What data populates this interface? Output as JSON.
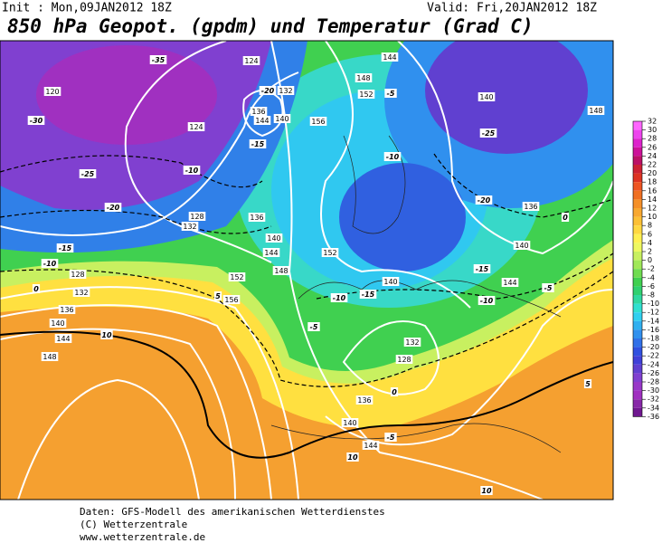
{
  "header": {
    "init": "Init : Mon,09JAN2012 18Z",
    "valid": "Valid: Fri,20JAN2012 18Z",
    "title": "850 hPa Geopot. (gpdm) und Temperatur (Grad C)"
  },
  "colorbar": {
    "ticks": [
      "32",
      "30",
      "28",
      "26",
      "24",
      "22",
      "20",
      "18",
      "16",
      "14",
      "12",
      "10",
      "8",
      "6",
      "4",
      "2",
      "0",
      "-2",
      "-4",
      "-6",
      "-8",
      "-10",
      "-12",
      "-14",
      "-16",
      "-18",
      "-20",
      "-22",
      "-24",
      "-26",
      "-28",
      "-30",
      "-32",
      "-34",
      "-36"
    ],
    "colors": [
      "#ff66ff",
      "#ee44ee",
      "#dd22cc",
      "#cc1199",
      "#bb1166",
      "#cc2233",
      "#dd3322",
      "#ee5522",
      "#f07022",
      "#f59028",
      "#f8a830",
      "#fcc035",
      "#ffd840",
      "#fff050",
      "#eef860",
      "#c8f060",
      "#a0e858",
      "#70dc50",
      "#40d050",
      "#30d070",
      "#30d8a0",
      "#30e0d0",
      "#30d0f0",
      "#30b0f0",
      "#3090ee",
      "#3070e8",
      "#3050e0",
      "#4040d8",
      "#6040d0",
      "#8040d0",
      "#9838c8",
      "#a030c0",
      "#8828a8",
      "#701890"
    ]
  },
  "map": {
    "labels": [
      "-35",
      "124",
      "120",
      "-30",
      "124",
      "-20",
      "132",
      "136",
      "144",
      "140",
      "-15",
      "-10",
      "-25",
      "-20",
      "128",
      "132",
      "136",
      "-15",
      "-10",
      "128",
      "132",
      "136",
      "140",
      "144",
      "148",
      "10",
      "156",
      "152",
      "148",
      "144",
      "140",
      "152",
      "148",
      "144",
      "152",
      "156",
      "140",
      "148",
      "-25",
      "-20",
      "136",
      "0",
      "140",
      "-15",
      "-10",
      "144",
      "-5",
      "140",
      "-15",
      "-10",
      "-5",
      "0",
      "128",
      "132",
      "136",
      "140",
      "144",
      "-5",
      "10",
      "10",
      "5",
      "0",
      "5",
      "-10",
      "-5"
    ]
  },
  "footer": {
    "lines": [
      "Daten: GFS-Modell des amerikanischen Wetterdienstes",
      "(C) Wetterzentrale",
      "www.wetterzentrale.de"
    ]
  }
}
